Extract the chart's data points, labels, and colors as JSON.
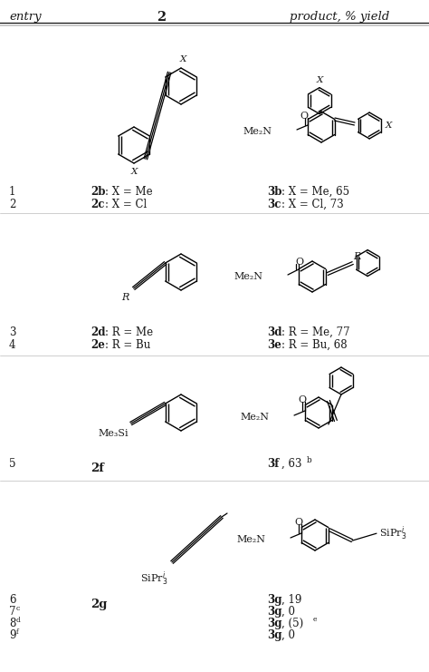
{
  "bg_color": "#ffffff",
  "text_color": "#1a1a1a",
  "figsize": [
    4.74,
    7.41
  ],
  "dpi": 100,
  "header": {
    "entry": "entry",
    "col2": "2",
    "product": "product, % yield"
  },
  "row1": {
    "entries": [
      [
        "1",
        ""
      ],
      [
        "2",
        ""
      ]
    ],
    "comp_bold": [
      "2b",
      "2c"
    ],
    "comp_rest": [
      ": X = Me",
      ": X = Cl"
    ],
    "prod_bold": [
      "3b",
      "3c"
    ],
    "prod_rest": [
      ": X = Me, 65",
      ": X = Cl, 73"
    ],
    "prod_sup": [
      "",
      ""
    ]
  },
  "row2": {
    "entries": [
      [
        "3",
        ""
      ],
      [
        "4",
        ""
      ]
    ],
    "comp_bold": [
      "2d",
      "2e"
    ],
    "comp_rest": [
      ": R = Me",
      ": R = Bu"
    ],
    "prod_bold": [
      "3d",
      "3e"
    ],
    "prod_rest": [
      ": R = Me, 77",
      ": R = Bu, 68"
    ],
    "prod_sup": [
      "",
      ""
    ]
  },
  "row3": {
    "entries": [
      [
        "5",
        ""
      ]
    ],
    "comp_bold": [
      "2f"
    ],
    "comp_rest": [
      ""
    ],
    "prod_bold": [
      "3f"
    ],
    "prod_rest": [
      ", 63"
    ],
    "prod_sup": [
      "b"
    ]
  },
  "row4": {
    "entries": [
      [
        "6",
        ""
      ],
      [
        "7",
        "c"
      ],
      [
        "8",
        "d"
      ],
      [
        "9",
        "f"
      ]
    ],
    "comp_bold": [
      "2g"
    ],
    "comp_rest": [
      ""
    ],
    "prod_bold": [
      "3g",
      "3g",
      "3g",
      "3g"
    ],
    "prod_rest": [
      ", 19",
      ", 0",
      ", (5)",
      ", 0"
    ],
    "prod_sup": [
      "",
      "",
      "e",
      ""
    ]
  }
}
